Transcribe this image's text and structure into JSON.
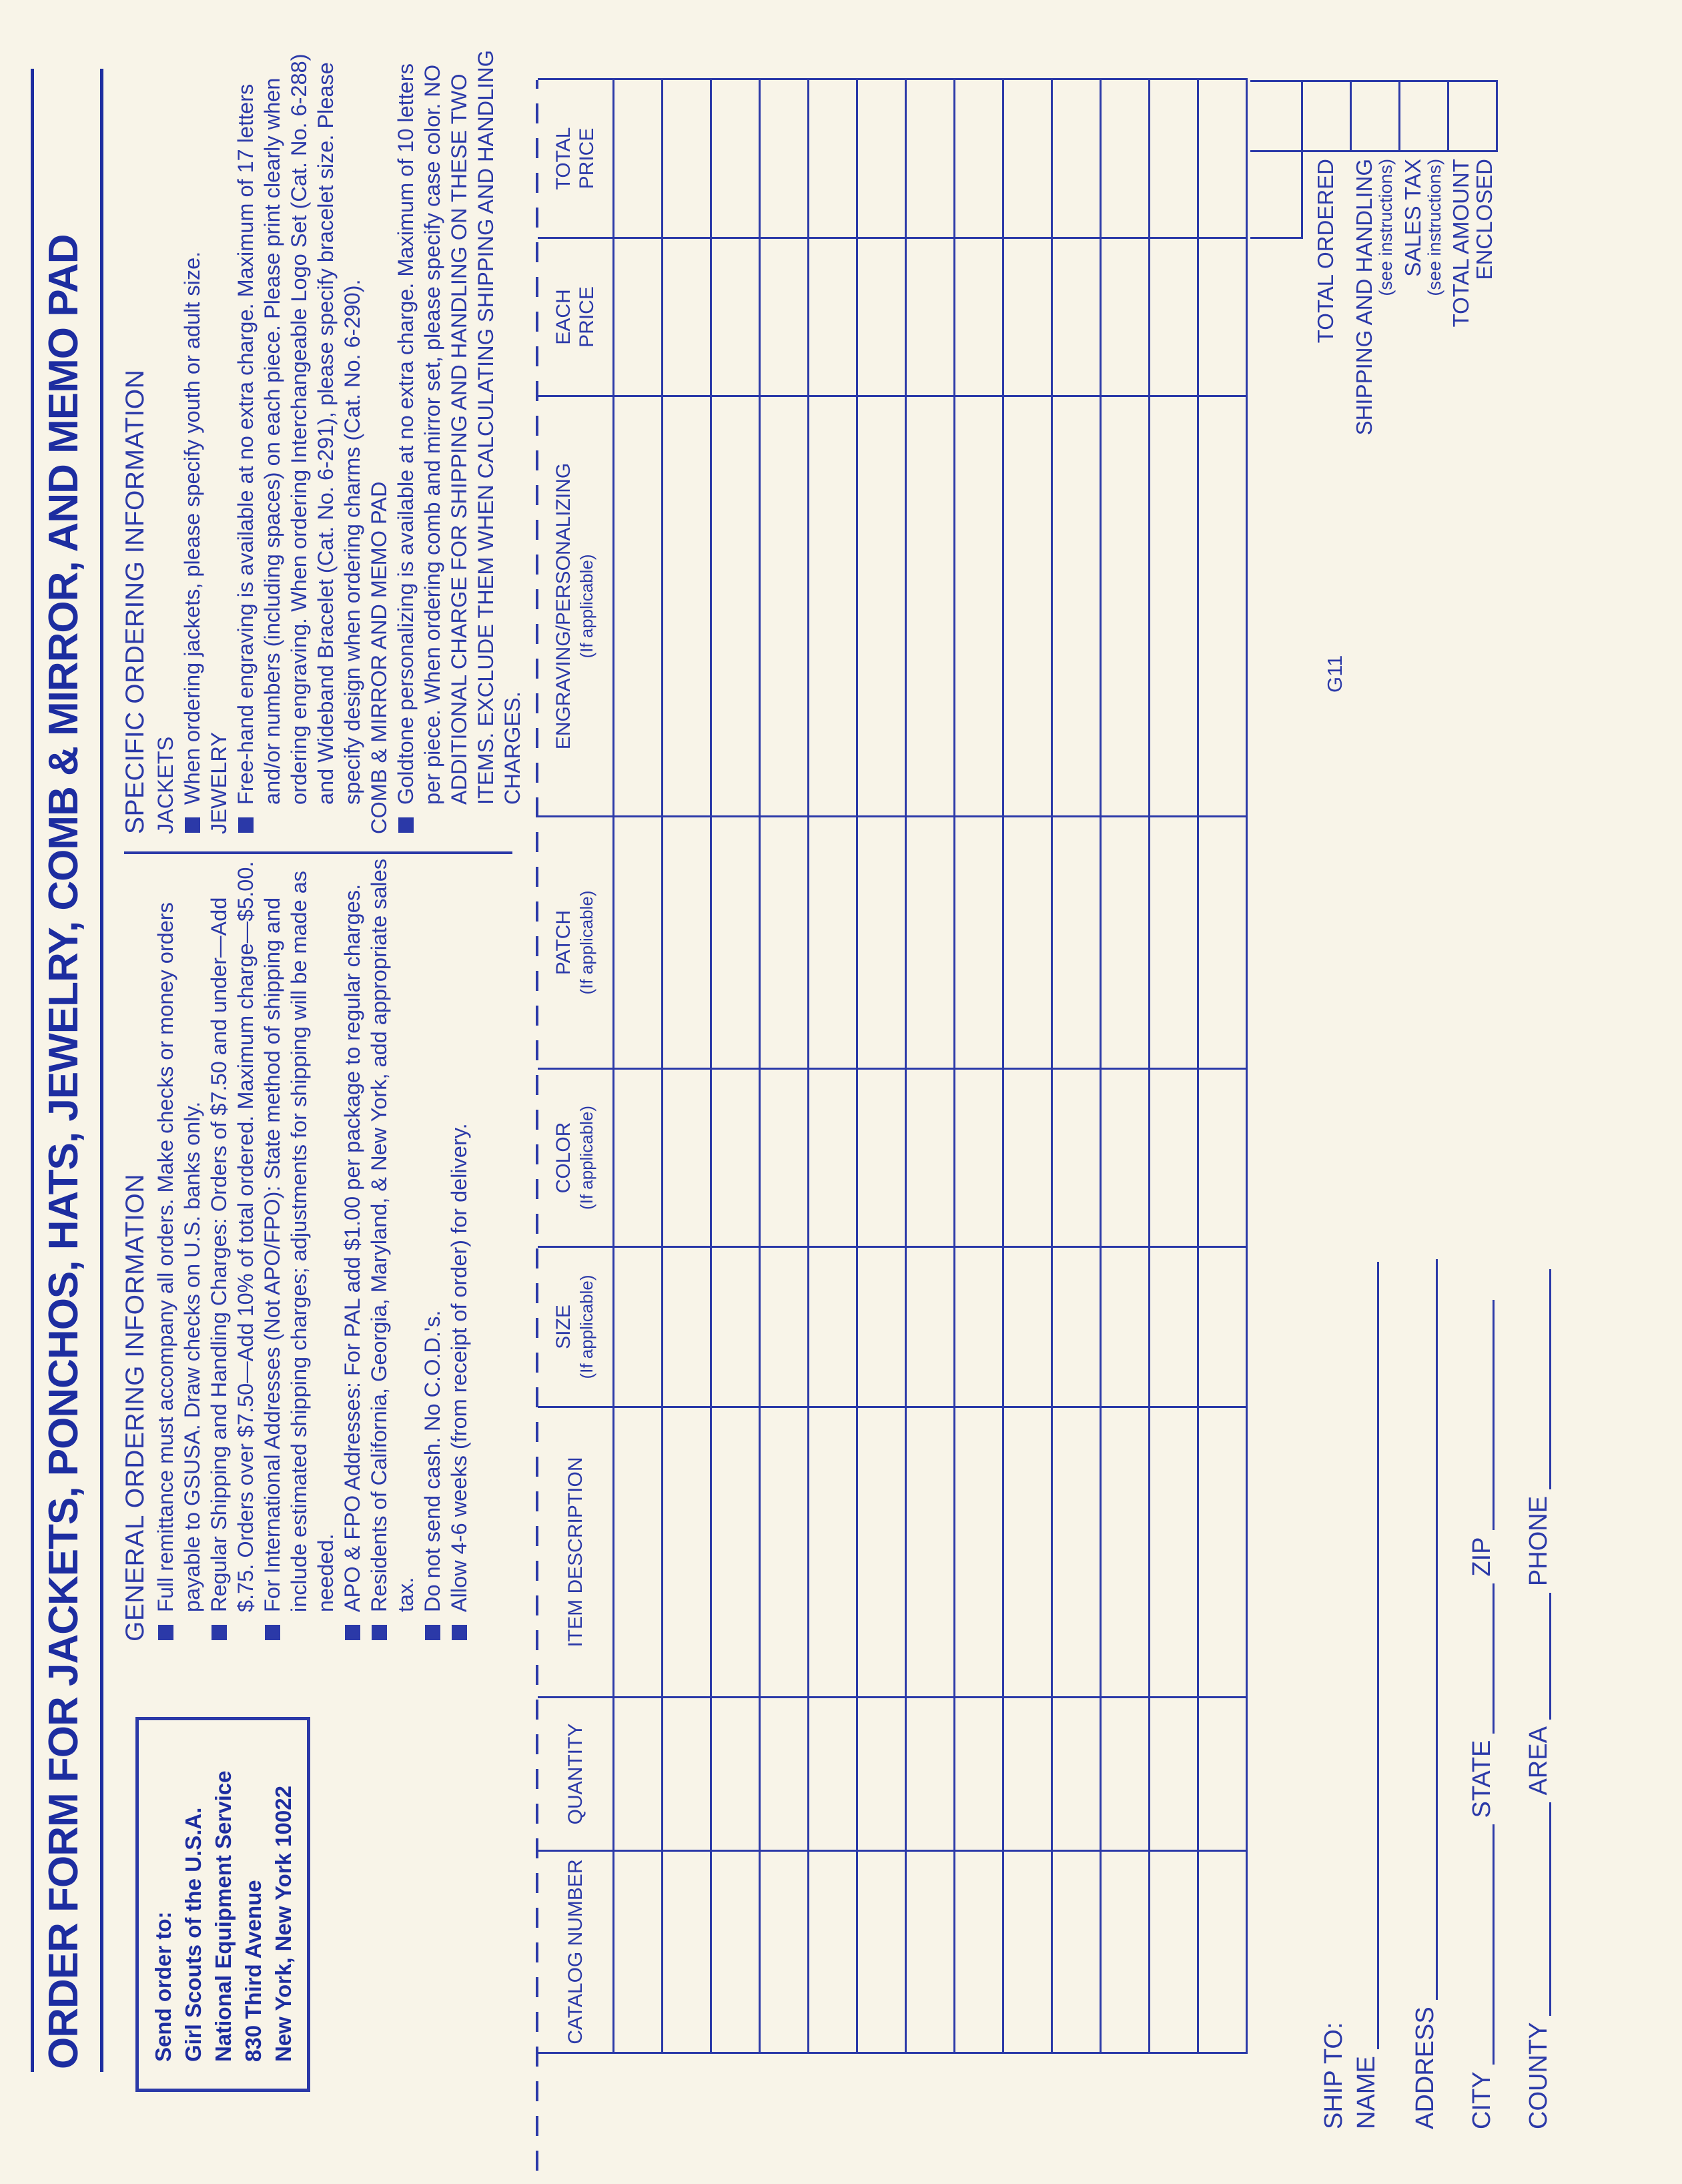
{
  "title": "ORDER FORM FOR JACKETS, PONCHOS, HATS, JEWELRY, COMB & MIRROR, AND MEMO PAD",
  "form_code": "G11",
  "colors": {
    "ink": "#2b39a8",
    "ink_bold": "#1d2da0",
    "paper": "#f8f4e8"
  },
  "send_order_to": {
    "label": "Send order to:",
    "lines": [
      "Girl Scouts of the U.S.A.",
      "National Equipment Service",
      "830 Third Avenue",
      "New York, New York 10022"
    ]
  },
  "general_info": {
    "heading": "GENERAL ORDERING INFORMATION",
    "bullets": [
      "Full remittance must accompany all orders. Make checks or money orders payable to GSUSA. Draw checks on U.S. banks only.",
      "Regular Shipping and Handling Charges: Orders of $7.50 and under—Add $.75. Orders over $7.50—Add 10% of total ordered. Maximum charge—$5.00.",
      "For International Addresses (Not APO/FPO): State method of shipping and include estimated shipping charges; adjustments for shipping will be made as needed.",
      "APO & FPO Addresses: For PAL add $1.00 per package to regular charges.",
      "Residents of California, Georgia, Maryland, & New York, add appropriate sales tax.",
      "Do not send cash. No C.O.D.'s.",
      "Allow 4-6 weeks (from receipt of order) for delivery."
    ]
  },
  "specific_info": {
    "heading": "SPECIFIC ORDERING INFORMATION",
    "sections": [
      {
        "subheading": "JACKETS",
        "bullets": [
          "When ordering jackets, please specify youth or adult size."
        ]
      },
      {
        "subheading": "JEWELRY",
        "bullets": [
          "Free-hand engraving is available at no extra charge. Maximum of 17 letters and/or numbers (including spaces) on each piece. Please print clearly when ordering engraving. When ordering Interchangeable Logo Set (Cat. No. 6-288) and Wideband Bracelet (Cat. No. 6-291), please specify bracelet size. Please specify design when ordering charms (Cat. No. 6-290)."
        ]
      },
      {
        "subheading": "COMB & MIRROR AND MEMO PAD",
        "bullets": [
          "Goldtone personalizing is available at no extra charge. Maximum of 10 letters per piece. When ordering comb and mirror set, please specify case color. NO ADDITIONAL CHARGE FOR SHIPPING AND HANDLING ON THESE TWO ITEMS. EXCLUDE THEM WHEN CALCULATING SHIPPING AND HANDLING CHARGES."
        ]
      }
    ]
  },
  "order_table": {
    "data_rows": 13,
    "columns": [
      {
        "line1": "CATALOG NUMBER",
        "line2": ""
      },
      {
        "line1": "QUANTITY",
        "line2": ""
      },
      {
        "line1": "ITEM DESCRIPTION",
        "line2": ""
      },
      {
        "line1": "SIZE",
        "line2": "(If applicable)"
      },
      {
        "line1": "COLOR",
        "line2": "(If applicable)"
      },
      {
        "line1": "PATCH",
        "line2": "(If applicable)"
      },
      {
        "line1": "ENGRAVING/PERSONALIZING",
        "line2": "(If applicable)"
      },
      {
        "line1": "EACH",
        "line2": "PRICE"
      },
      {
        "line1": "TOTAL",
        "line2": "PRICE"
      }
    ]
  },
  "totals": {
    "rows": [
      {
        "label": "TOTAL ORDERED"
      },
      {
        "label": "SHIPPING AND HANDLING",
        "note": "(see instructions)"
      },
      {
        "label": "SALES TAX",
        "note": "(see instructions)"
      },
      {
        "label": "TOTAL AMOUNT",
        "label2": "ENCLOSED"
      }
    ]
  },
  "ship_to": {
    "heading": "SHIP TO:",
    "name": "NAME",
    "address": "ADDRESS",
    "city": "CITY",
    "state": "STATE",
    "zip": "ZIP",
    "county": "COUNTY",
    "area": "AREA",
    "phone": "PHONE"
  }
}
